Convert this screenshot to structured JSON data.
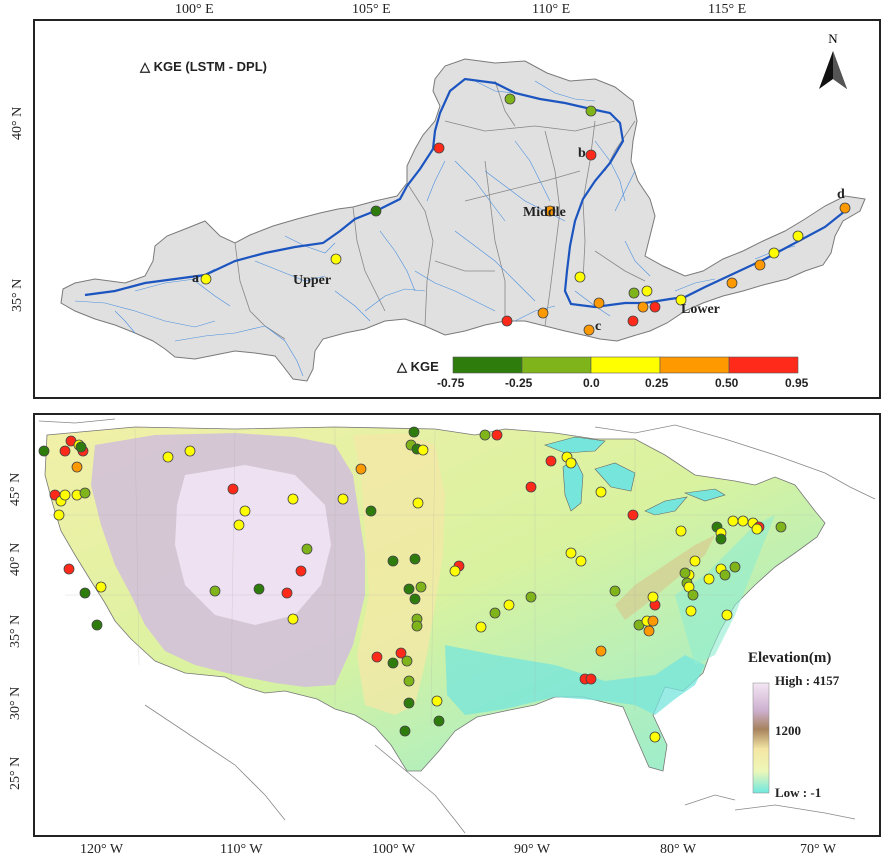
{
  "top_map": {
    "title": "△ KGE (LSTM - DPL)",
    "north": "N",
    "lon_ticks": [
      "100° E",
      "105° E",
      "110° E",
      "115° E"
    ],
    "lat_ticks": [
      "40° N",
      "35° N"
    ],
    "region_labels": {
      "upper": "Upper",
      "middle": "Middle",
      "lower": "Lower"
    },
    "point_labels": {
      "a": "a",
      "b": "b",
      "c": "c",
      "d": "d"
    },
    "legend": {
      "title": "△ KGE",
      "breaks": [
        "-0.75",
        "-0.25",
        "0.0",
        "0.25",
        "0.50",
        "0.95"
      ],
      "colors": [
        "#2e7d0c",
        "#7fb51a",
        "#ffff00",
        "#ff9900",
        "#ff2a1a"
      ]
    }
  },
  "bottom_map": {
    "lon_ticks": [
      "120° W",
      "110° W",
      "100° W",
      "90° W",
      "80° W",
      "70° W"
    ],
    "lat_ticks": [
      "45° N",
      "40° N",
      "35° N",
      "30° N",
      "25° N"
    ],
    "legend": {
      "title": "Elevation(m)",
      "high": "High : 4157",
      "mid": "1200",
      "low": "Low : -1"
    }
  }
}
